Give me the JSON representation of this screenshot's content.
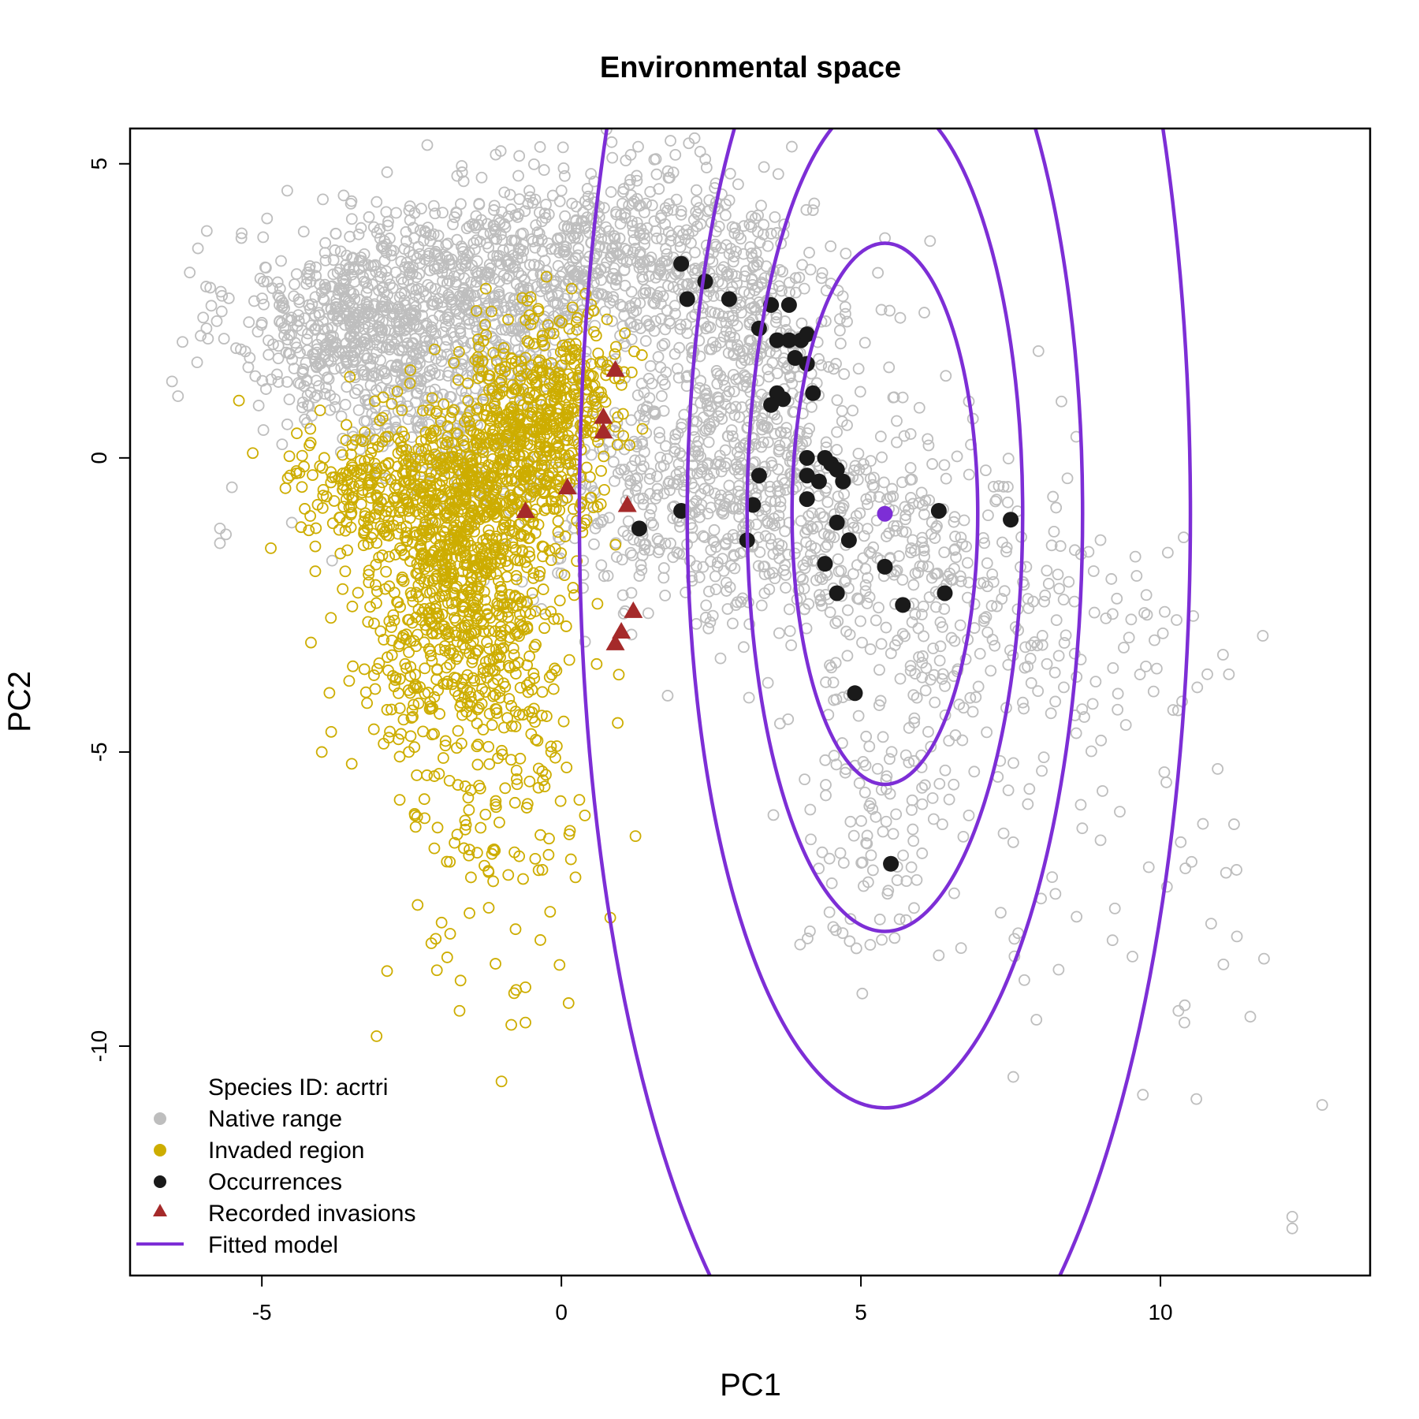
{
  "chart_data": {
    "type": "scatter",
    "title": "Environmental space",
    "xlabel": "PC1",
    "ylabel": "PC2",
    "xlim": [
      -7.2,
      13.5
    ],
    "ylim": [
      -13.9,
      5.6
    ],
    "x_ticks": [
      -5,
      0,
      5,
      10
    ],
    "y_ticks": [
      5,
      0,
      -5,
      -10
    ],
    "x_tick_labels": [
      "-5",
      "0",
      "5",
      "10"
    ],
    "y_tick_labels": [
      "5",
      "0",
      "-5",
      "-10"
    ],
    "grid": false,
    "legend": {
      "placement": "bottom-left",
      "header": "Species ID: acrtri",
      "entries": [
        {
          "label": "Native range",
          "symbol": "circle",
          "color": "#bebebe"
        },
        {
          "label": "Invaded region",
          "symbol": "circle",
          "color": "#cdad00"
        },
        {
          "label": "Occurrences",
          "symbol": "circle",
          "color": "#1a1a1a"
        },
        {
          "label": "Recorded invasions",
          "symbol": "triangle",
          "color": "#a52a2a"
        },
        {
          "label": "Fitted model",
          "symbol": "line",
          "color": "#7d2ed6"
        }
      ]
    },
    "colors": {
      "native": "#bebebe",
      "invaded": "#cdad00",
      "occurrence": "#1a1a1a",
      "invasion": "#a52a2a",
      "model": "#7d2ed6"
    },
    "fitted_model": {
      "center": [
        5.4,
        -0.95
      ],
      "ellipses": [
        {
          "level": 1,
          "rx": 1.55,
          "ry": 4.6
        },
        {
          "level": 2,
          "rx": 2.3,
          "ry": 7.1
        },
        {
          "level": 3,
          "rx": 3.3,
          "ry": 10.1
        },
        {
          "level": 4,
          "rx": 5.1,
          "ry": 15.8
        }
      ]
    },
    "native_clusters": [
      {
        "cx": -3.5,
        "cy": 2.3,
        "sx": 1.0,
        "sy": 0.8,
        "n": 500
      },
      {
        "cx": -1.5,
        "cy": 2.9,
        "sx": 1.1,
        "sy": 0.8,
        "n": 450
      },
      {
        "cx": 1.0,
        "cy": 3.5,
        "sx": 1.2,
        "sy": 0.8,
        "n": 450
      },
      {
        "cx": 3.0,
        "cy": 2.0,
        "sx": 1.0,
        "sy": 1.2,
        "n": 400
      },
      {
        "cx": 2.5,
        "cy": -0.8,
        "sx": 1.5,
        "sy": 1.0,
        "n": 500
      },
      {
        "cx": 5.5,
        "cy": -1.5,
        "sx": 1.3,
        "sy": 1.2,
        "n": 300
      },
      {
        "cx": -2.0,
        "cy": 0.9,
        "sx": 1.1,
        "sy": 0.9,
        "n": 250
      },
      {
        "cx": 7.8,
        "cy": -3.0,
        "sx": 1.6,
        "sy": 1.0,
        "n": 110
      },
      {
        "cx": 5.2,
        "cy": -6.5,
        "sx": 0.6,
        "sy": 1.2,
        "n": 90
      },
      {
        "cx": 6.2,
        "cy": -5.0,
        "sx": 1.2,
        "sy": 1.3,
        "n": 60
      },
      {
        "cx": 9.2,
        "cy": -6.0,
        "sx": 1.5,
        "sy": 2.0,
        "n": 50
      }
    ],
    "native_outliers": [
      [
        -6.5,
        1.3
      ],
      [
        -6.4,
        1.05
      ],
      [
        -5.7,
        -1.2
      ],
      [
        -5.7,
        -1.45
      ],
      [
        -5.6,
        -1.3
      ],
      [
        -4.5,
        -1.1
      ],
      [
        -5.5,
        -0.5
      ],
      [
        10.3,
        -9.4
      ],
      [
        10.6,
        -10.9
      ],
      [
        11.5,
        -9.5
      ],
      [
        12.7,
        -11.0
      ],
      [
        12.2,
        -12.9
      ],
      [
        12.2,
        -13.1
      ],
      [
        8.3,
        -8.7
      ],
      [
        10.4,
        -9.6
      ],
      [
        9.0,
        -6.5
      ],
      [
        8.6,
        -7.8
      ],
      [
        9.2,
        -8.2
      ],
      [
        9.9,
        -3.1
      ]
    ],
    "invaded_clusters": [
      {
        "cx": -1.6,
        "cy": -1.2,
        "sx": 0.7,
        "sy": 1.1,
        "n": 700
      },
      {
        "cx": -0.5,
        "cy": 0.4,
        "sx": 0.6,
        "sy": 0.9,
        "n": 450
      },
      {
        "cx": -3.0,
        "cy": -0.5,
        "sx": 0.8,
        "sy": 0.6,
        "n": 250
      },
      {
        "cx": -1.6,
        "cy": -3.8,
        "sx": 0.9,
        "sy": 1.0,
        "n": 300
      },
      {
        "cx": -1.0,
        "cy": -6.5,
        "sx": 0.8,
        "sy": 1.4,
        "n": 90
      },
      {
        "cx": 0.3,
        "cy": 1.2,
        "sx": 0.4,
        "sy": 0.6,
        "n": 120
      }
    ],
    "invaded_outliers": [
      [
        -1.0,
        -10.6
      ],
      [
        -1.1,
        -8.6
      ],
      [
        -0.6,
        -9.6
      ],
      [
        -2.4,
        -7.6
      ],
      [
        -2.0,
        -7.9
      ],
      [
        -1.7,
        -9.4
      ],
      [
        -0.6,
        -9.0
      ],
      [
        -4.0,
        -5.0
      ],
      [
        -3.5,
        -5.2
      ]
    ],
    "occurrences": [
      [
        2.0,
        3.3
      ],
      [
        2.4,
        3.0
      ],
      [
        2.1,
        2.7
      ],
      [
        2.8,
        2.7
      ],
      [
        3.5,
        2.6
      ],
      [
        3.8,
        2.6
      ],
      [
        3.3,
        2.2
      ],
      [
        3.6,
        2.0
      ],
      [
        3.8,
        2.0
      ],
      [
        4.0,
        2.0
      ],
      [
        4.1,
        2.1
      ],
      [
        3.9,
        1.7
      ],
      [
        4.1,
        1.6
      ],
      [
        3.6,
        1.1
      ],
      [
        3.5,
        0.9
      ],
      [
        3.7,
        1.0
      ],
      [
        4.2,
        1.1
      ],
      [
        4.1,
        0.0
      ],
      [
        4.4,
        0.0
      ],
      [
        4.5,
        -0.1
      ],
      [
        4.6,
        -0.2
      ],
      [
        4.7,
        -0.4
      ],
      [
        4.1,
        -0.3
      ],
      [
        4.3,
        -0.4
      ],
      [
        3.3,
        -0.3
      ],
      [
        4.1,
        -0.7
      ],
      [
        3.2,
        -0.8
      ],
      [
        2.0,
        -0.9
      ],
      [
        1.3,
        -1.2
      ],
      [
        3.1,
        -1.4
      ],
      [
        4.6,
        -1.1
      ],
      [
        4.8,
        -1.4
      ],
      [
        6.3,
        -0.9
      ],
      [
        7.5,
        -1.05
      ],
      [
        4.4,
        -1.8
      ],
      [
        5.4,
        -1.85
      ],
      [
        4.6,
        -2.3
      ],
      [
        5.7,
        -2.5
      ],
      [
        6.4,
        -2.3
      ],
      [
        4.9,
        -4.0
      ],
      [
        5.5,
        -6.9
      ]
    ],
    "optimum": [
      5.4,
      -0.95
    ],
    "invasions": [
      [
        0.9,
        1.5
      ],
      [
        0.7,
        0.7
      ],
      [
        0.7,
        0.45
      ],
      [
        0.1,
        -0.5
      ],
      [
        -0.6,
        -0.9
      ],
      [
        1.1,
        -0.8
      ],
      [
        1.2,
        -2.6
      ],
      [
        1.0,
        -2.95
      ],
      [
        0.9,
        -3.15
      ]
    ]
  }
}
